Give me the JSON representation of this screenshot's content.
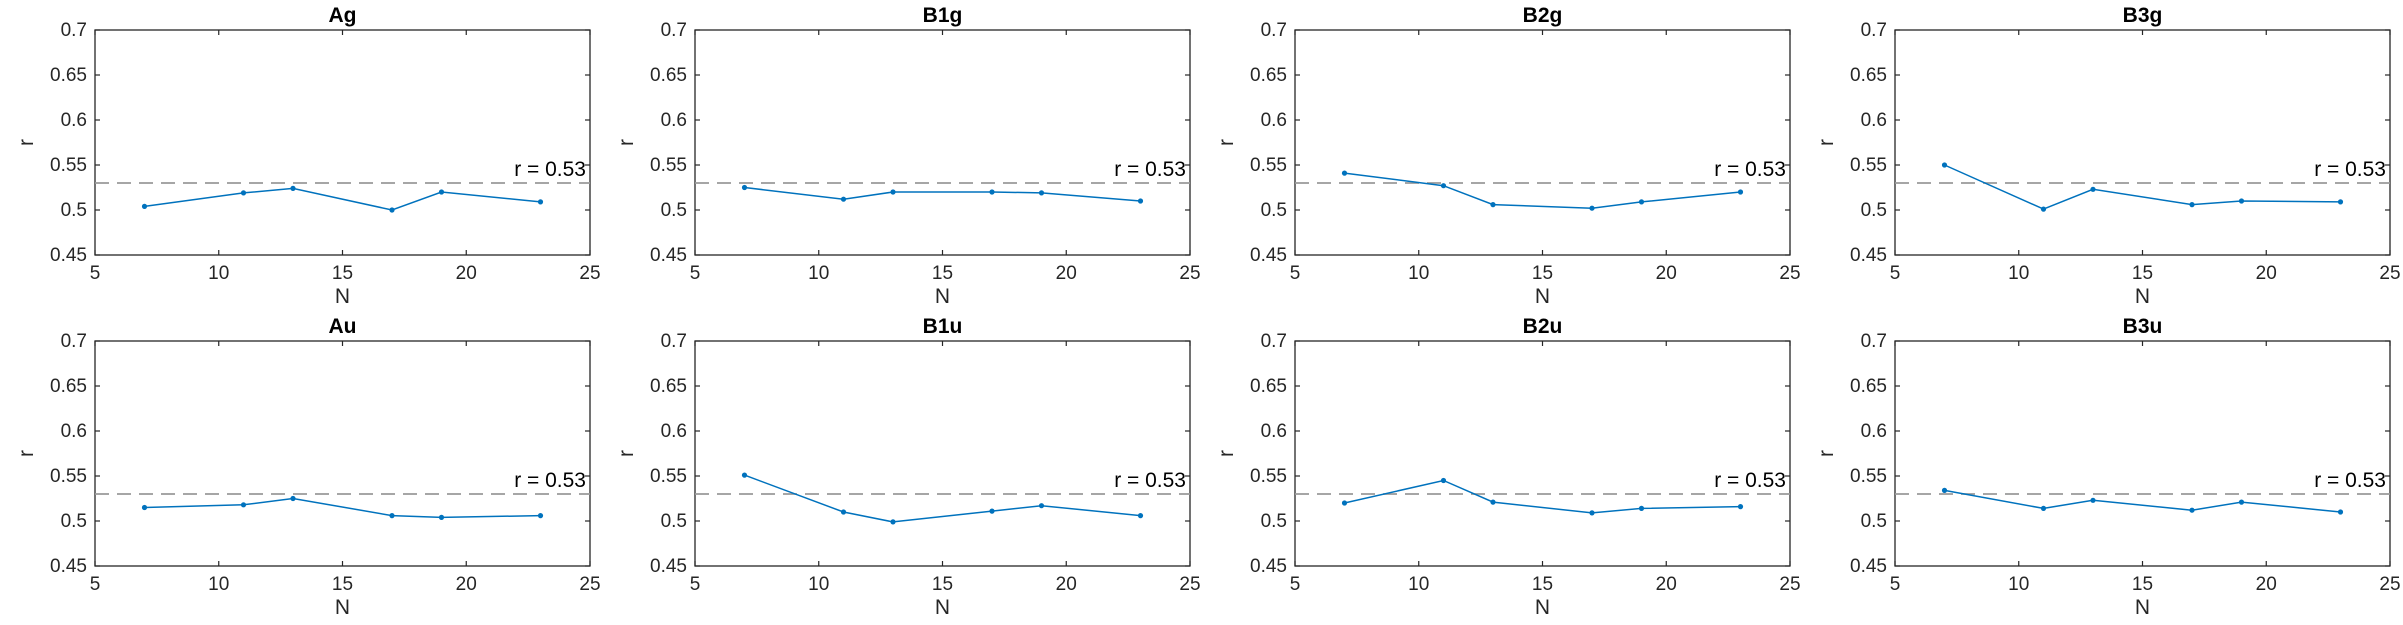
{
  "style": {
    "line_color": "#0072BD",
    "ref_color": "#999999",
    "axis_color": "#262626"
  },
  "chart_data": [
    {
      "type": "line",
      "title": "Ag",
      "xlabel": "N",
      "ylabel": "r",
      "xlim": [
        5,
        25
      ],
      "ylim": [
        0.45,
        0.7
      ],
      "xticks": [
        "5",
        "10",
        "15",
        "20",
        "25"
      ],
      "yticks": [
        "0.45",
        "0.5",
        "0.55",
        "0.6",
        "0.65",
        "0.7"
      ],
      "reference": {
        "y": 0.53,
        "label": "r = 0.53"
      },
      "x": [
        7,
        11,
        13,
        17,
        19,
        23
      ],
      "values": [
        0.504,
        0.519,
        0.524,
        0.5,
        0.52,
        0.509
      ]
    },
    {
      "type": "line",
      "title": "B1g",
      "xlabel": "N",
      "ylabel": "r",
      "xlim": [
        5,
        25
      ],
      "ylim": [
        0.45,
        0.7
      ],
      "xticks": [
        "5",
        "10",
        "15",
        "20",
        "25"
      ],
      "yticks": [
        "0.45",
        "0.5",
        "0.55",
        "0.6",
        "0.65",
        "0.7"
      ],
      "reference": {
        "y": 0.53,
        "label": "r = 0.53"
      },
      "x": [
        7,
        11,
        13,
        17,
        19,
        23
      ],
      "values": [
        0.525,
        0.512,
        0.52,
        0.52,
        0.519,
        0.51
      ]
    },
    {
      "type": "line",
      "title": "B2g",
      "xlabel": "N",
      "ylabel": "r",
      "xlim": [
        5,
        25
      ],
      "ylim": [
        0.45,
        0.7
      ],
      "xticks": [
        "5",
        "10",
        "15",
        "20",
        "25"
      ],
      "yticks": [
        "0.45",
        "0.5",
        "0.55",
        "0.6",
        "0.65",
        "0.7"
      ],
      "reference": {
        "y": 0.53,
        "label": "r = 0.53"
      },
      "x": [
        7,
        11,
        13,
        17,
        19,
        23
      ],
      "values": [
        0.541,
        0.527,
        0.506,
        0.502,
        0.509,
        0.52
      ]
    },
    {
      "type": "line",
      "title": "B3g",
      "xlabel": "N",
      "ylabel": "r",
      "xlim": [
        5,
        25
      ],
      "ylim": [
        0.45,
        0.7
      ],
      "xticks": [
        "5",
        "10",
        "15",
        "20",
        "25"
      ],
      "yticks": [
        "0.45",
        "0.5",
        "0.55",
        "0.6",
        "0.65",
        "0.7"
      ],
      "reference": {
        "y": 0.53,
        "label": "r = 0.53"
      },
      "x": [
        7,
        11,
        13,
        17,
        19,
        23
      ],
      "values": [
        0.55,
        0.501,
        0.523,
        0.506,
        0.51,
        0.509
      ]
    },
    {
      "type": "line",
      "title": "Au",
      "xlabel": "N",
      "ylabel": "r",
      "xlim": [
        5,
        25
      ],
      "ylim": [
        0.45,
        0.7
      ],
      "xticks": [
        "5",
        "10",
        "15",
        "20",
        "25"
      ],
      "yticks": [
        "0.45",
        "0.5",
        "0.55",
        "0.6",
        "0.65",
        "0.7"
      ],
      "reference": {
        "y": 0.53,
        "label": "r = 0.53"
      },
      "x": [
        7,
        11,
        13,
        17,
        19,
        23
      ],
      "values": [
        0.515,
        0.518,
        0.525,
        0.506,
        0.504,
        0.506
      ]
    },
    {
      "type": "line",
      "title": "B1u",
      "xlabel": "N",
      "ylabel": "r",
      "xlim": [
        5,
        25
      ],
      "ylim": [
        0.45,
        0.7
      ],
      "xticks": [
        "5",
        "10",
        "15",
        "20",
        "25"
      ],
      "yticks": [
        "0.45",
        "0.5",
        "0.55",
        "0.6",
        "0.65",
        "0.7"
      ],
      "reference": {
        "y": 0.53,
        "label": "r = 0.53"
      },
      "x": [
        7,
        11,
        13,
        17,
        19,
        23
      ],
      "values": [
        0.551,
        0.51,
        0.499,
        0.511,
        0.517,
        0.506
      ]
    },
    {
      "type": "line",
      "title": "B2u",
      "xlabel": "N",
      "ylabel": "r",
      "xlim": [
        5,
        25
      ],
      "ylim": [
        0.45,
        0.7
      ],
      "xticks": [
        "5",
        "10",
        "15",
        "20",
        "25"
      ],
      "yticks": [
        "0.45",
        "0.5",
        "0.55",
        "0.6",
        "0.65",
        "0.7"
      ],
      "reference": {
        "y": 0.53,
        "label": "r = 0.53"
      },
      "x": [
        7,
        11,
        13,
        17,
        19,
        23
      ],
      "values": [
        0.52,
        0.545,
        0.521,
        0.509,
        0.514,
        0.516
      ]
    },
    {
      "type": "line",
      "title": "B3u",
      "xlabel": "N",
      "ylabel": "r",
      "xlim": [
        5,
        25
      ],
      "ylim": [
        0.45,
        0.7
      ],
      "xticks": [
        "5",
        "10",
        "15",
        "20",
        "25"
      ],
      "yticks": [
        "0.45",
        "0.5",
        "0.55",
        "0.6",
        "0.65",
        "0.7"
      ],
      "reference": {
        "y": 0.53,
        "label": "r = 0.53"
      },
      "x": [
        7,
        11,
        13,
        17,
        19,
        23
      ],
      "values": [
        0.534,
        0.514,
        0.523,
        0.512,
        0.521,
        0.51
      ]
    }
  ]
}
